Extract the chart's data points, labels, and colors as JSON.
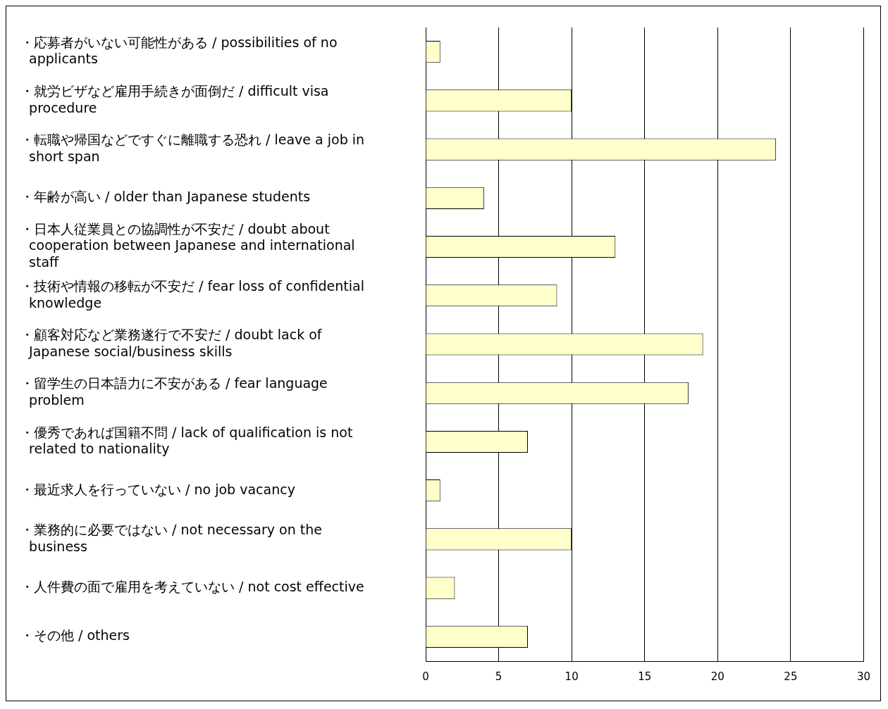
{
  "chart_data": {
    "type": "bar",
    "orientation": "horizontal",
    "categories": [
      "・応募者がいない可能性がある / possibilities of no applicants",
      "・就労ビザなど雇用手続きが面倒だ / difficult visa procedure",
      "・転職や帰国などですぐに離職する恐れ / leave a job in short span",
      "・年齢が高い / older than Japanese students",
      "・日本人従業員との協調性が不安だ / doubt about cooperation between Japanese and international staff",
      "・技術や情報の移転が不安だ / fear loss of confidential knowledge",
      "・顧客対応など業務遂行で不安だ / doubt lack of Japanese social/business skills",
      "・留学生の日本語力に不安がある / fear language problem",
      "・優秀であれば国籍不問 / lack of qualification is not related to nationality",
      "・最近求人を行っていない / no job vacancy",
      "・業務的に必要ではない / not necessary on the business",
      "・人件費の面で雇用を考えていない / not cost effective",
      "・その他 / others"
    ],
    "values": [
      1,
      10,
      24,
      4,
      13,
      9,
      19,
      18,
      7,
      1,
      10,
      2,
      7
    ],
    "color": "#ffffcc",
    "xlim": [
      0,
      30
    ],
    "xticks": [
      0,
      5,
      10,
      15,
      20,
      25,
      30
    ],
    "grid": "x"
  }
}
